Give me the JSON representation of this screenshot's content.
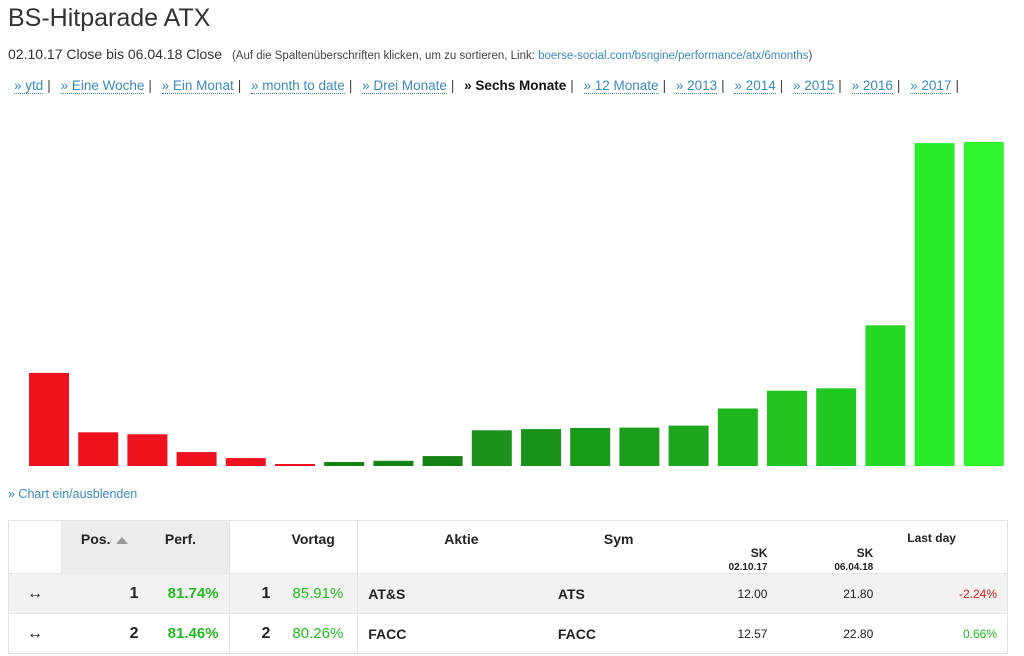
{
  "page": {
    "title": "BS-Hitparade ATX",
    "date_range": "02.10.17 Close bis 06.04.18 Close",
    "hint_prefix": "(Auf die Spaltenüberschriften klicken, um zu sortieren, Link: ",
    "hint_link": "boerse-social.com/bsngine/performance/atx/6months",
    "hint_suffix": ")"
  },
  "periods": [
    {
      "label": "» ytd",
      "active": false
    },
    {
      "label": "» Eine Woche",
      "active": false
    },
    {
      "label": "» Ein Monat",
      "active": false
    },
    {
      "label": "» month to date",
      "active": false
    },
    {
      "label": "» Drei Monate",
      "active": false
    },
    {
      "label": "» Sechs Monate",
      "active": true
    },
    {
      "label": "» 12 Monate",
      "active": false
    },
    {
      "label": "» 2013",
      "active": false
    },
    {
      "label": "» 2014",
      "active": false
    },
    {
      "label": "» 2015",
      "active": false
    },
    {
      "label": "» 2016",
      "active": false
    },
    {
      "label": "» 2017",
      "active": false
    }
  ],
  "chart_toggle": "» Chart ein/ausblenden",
  "chart_data": {
    "type": "bar",
    "values": [
      -23.5,
      -8.5,
      -8.0,
      -3.5,
      -2.0,
      -0.5,
      1.0,
      1.3,
      2.5,
      9.0,
      9.3,
      9.6,
      9.7,
      10.2,
      14.5,
      19.0,
      19.6,
      35.5,
      81.46,
      81.74
    ],
    "colors": [
      "#f0111e",
      "#f0111e",
      "#f0111e",
      "#f0111e",
      "#f0111e",
      "#f0111e",
      "#158315",
      "#158315",
      "#158315",
      "#1a921a",
      "#1a931a",
      "#1a981a",
      "#1b9d1b",
      "#1ea61e",
      "#1fb51f",
      "#21c421",
      "#22c822",
      "#25d825",
      "#2beb2b",
      "#2ef72e"
    ]
  },
  "table": {
    "headers": {
      "pos": "Pos.",
      "perf": "Perf.",
      "vortag": "Vortag",
      "aktie": "Aktie",
      "sym": "Sym",
      "sk1": "SK",
      "sk1_date": "02.10.17",
      "sk2": "SK",
      "sk2_date": "06.04.18",
      "last": "Last day"
    },
    "rows": [
      {
        "arrow": "↔",
        "pos": "1",
        "perf": "81.74%",
        "vortag_pos": "1",
        "vortag_perf": "85.91%",
        "aktie": "AT&S",
        "sym": "ATS",
        "sk1": "12.00",
        "sk2": "21.80",
        "last": "-2.24%"
      },
      {
        "arrow": "↔",
        "pos": "2",
        "perf": "81.46%",
        "vortag_pos": "2",
        "vortag_perf": "80.26%",
        "aktie": "FACC",
        "sym": "FACC",
        "sk1": "12.57",
        "sk2": "22.80",
        "last": "0.66%"
      }
    ]
  }
}
